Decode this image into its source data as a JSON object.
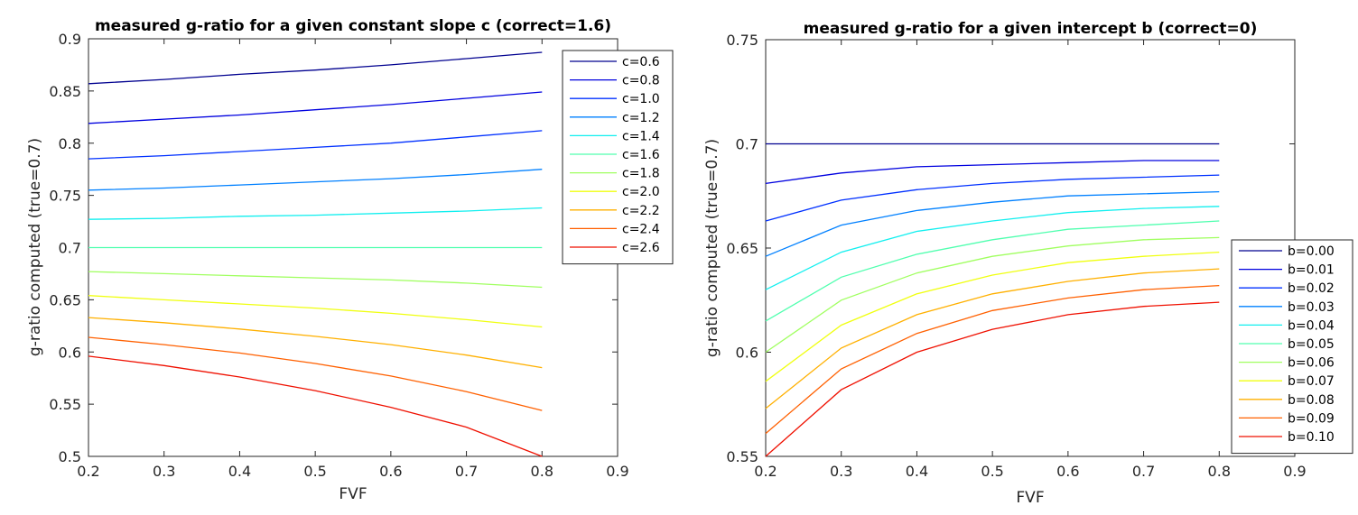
{
  "chart_data": [
    {
      "type": "line",
      "title": "measured g-ratio for a given constant slope c (correct=1.6)",
      "xlabel": "FVF",
      "ylabel": "g-ratio computed (true=0.7)",
      "xlim": [
        0.2,
        0.9
      ],
      "ylim": [
        0.5,
        0.9
      ],
      "xticks": [
        "0.2",
        "0.3",
        "0.4",
        "0.5",
        "0.6",
        "0.7",
        "0.8",
        "0.9"
      ],
      "yticks": [
        "0.5",
        "0.55",
        "0.6",
        "0.65",
        "0.7",
        "0.75",
        "0.8",
        "0.85",
        "0.9"
      ],
      "legend_position": "top-right",
      "x": [
        0.2,
        0.3,
        0.4,
        0.5,
        0.6,
        0.7,
        0.8
      ],
      "series": [
        {
          "name": "c=0.6",
          "color": "#00008f",
          "values": [
            0.857,
            0.861,
            0.866,
            0.87,
            0.875,
            0.881,
            0.887
          ]
        },
        {
          "name": "c=0.8",
          "color": "#0000df",
          "values": [
            0.819,
            0.823,
            0.827,
            0.832,
            0.837,
            0.843,
            0.849
          ]
        },
        {
          "name": "c=1.0",
          "color": "#0030ff",
          "values": [
            0.785,
            0.788,
            0.792,
            0.796,
            0.8,
            0.806,
            0.812
          ]
        },
        {
          "name": "c=1.2",
          "color": "#0080ff",
          "values": [
            0.755,
            0.757,
            0.76,
            0.763,
            0.766,
            0.77,
            0.775
          ]
        },
        {
          "name": "c=1.4",
          "color": "#10efef",
          "values": [
            0.727,
            0.728,
            0.73,
            0.731,
            0.733,
            0.735,
            0.738
          ]
        },
        {
          "name": "c=1.6",
          "color": "#50ffaf",
          "values": [
            0.7,
            0.7,
            0.7,
            0.7,
            0.7,
            0.7,
            0.7
          ]
        },
        {
          "name": "c=1.8",
          "color": "#a0ff60",
          "values": [
            0.677,
            0.675,
            0.673,
            0.671,
            0.669,
            0.666,
            0.662
          ]
        },
        {
          "name": "c=2.0",
          "color": "#f0ff10",
          "values": [
            0.654,
            0.65,
            0.646,
            0.642,
            0.637,
            0.631,
            0.624
          ]
        },
        {
          "name": "c=2.2",
          "color": "#ffb000",
          "values": [
            0.633,
            0.628,
            0.622,
            0.615,
            0.607,
            0.597,
            0.585
          ]
        },
        {
          "name": "c=2.4",
          "color": "#ff6000",
          "values": [
            0.614,
            0.607,
            0.599,
            0.589,
            0.577,
            0.562,
            0.544
          ]
        },
        {
          "name": "c=2.6",
          "color": "#ef1000",
          "values": [
            0.596,
            0.587,
            0.576,
            0.563,
            0.547,
            0.528,
            0.5
          ]
        }
      ]
    },
    {
      "type": "line",
      "title": "measured g-ratio for a given intercept b (correct=0)",
      "xlabel": "FVF",
      "ylabel": "g-ratio computed (true=0.7)",
      "xlim": [
        0.2,
        0.9
      ],
      "ylim": [
        0.55,
        0.75
      ],
      "xticks": [
        "0.2",
        "0.3",
        "0.4",
        "0.5",
        "0.6",
        "0.7",
        "0.8",
        "0.9"
      ],
      "yticks": [
        "0.55",
        "0.6",
        "0.65",
        "0.7",
        "0.75"
      ],
      "legend_position": "right",
      "x": [
        0.2,
        0.3,
        0.4,
        0.5,
        0.6,
        0.7,
        0.8
      ],
      "series": [
        {
          "name": "b=0.00",
          "color": "#00008f",
          "values": [
            0.7,
            0.7,
            0.7,
            0.7,
            0.7,
            0.7,
            0.7
          ]
        },
        {
          "name": "b=0.01",
          "color": "#0000df",
          "values": [
            0.681,
            0.686,
            0.689,
            0.69,
            0.691,
            0.692,
            0.692
          ]
        },
        {
          "name": "b=0.02",
          "color": "#0030ff",
          "values": [
            0.663,
            0.673,
            0.678,
            0.681,
            0.683,
            0.684,
            0.685
          ]
        },
        {
          "name": "b=0.03",
          "color": "#0080ff",
          "values": [
            0.646,
            0.661,
            0.668,
            0.672,
            0.675,
            0.676,
            0.677
          ]
        },
        {
          "name": "b=0.04",
          "color": "#10efef",
          "values": [
            0.63,
            0.648,
            0.658,
            0.663,
            0.667,
            0.669,
            0.67
          ]
        },
        {
          "name": "b=0.05",
          "color": "#50ffaf",
          "values": [
            0.615,
            0.636,
            0.647,
            0.654,
            0.659,
            0.661,
            0.663
          ]
        },
        {
          "name": "b=0.06",
          "color": "#a0ff60",
          "values": [
            0.6,
            0.625,
            0.638,
            0.646,
            0.651,
            0.654,
            0.655
          ]
        },
        {
          "name": "b=0.07",
          "color": "#f0ff10",
          "values": [
            0.586,
            0.613,
            0.628,
            0.637,
            0.643,
            0.646,
            0.648
          ]
        },
        {
          "name": "b=0.08",
          "color": "#ffb000",
          "values": [
            0.573,
            0.602,
            0.618,
            0.628,
            0.634,
            0.638,
            0.64
          ]
        },
        {
          "name": "b=0.09",
          "color": "#ff6000",
          "values": [
            0.561,
            0.592,
            0.609,
            0.62,
            0.626,
            0.63,
            0.632
          ]
        },
        {
          "name": "b=0.10",
          "color": "#ef1000",
          "values": [
            0.55,
            0.582,
            0.6,
            0.611,
            0.618,
            0.622,
            0.624
          ]
        }
      ]
    }
  ]
}
